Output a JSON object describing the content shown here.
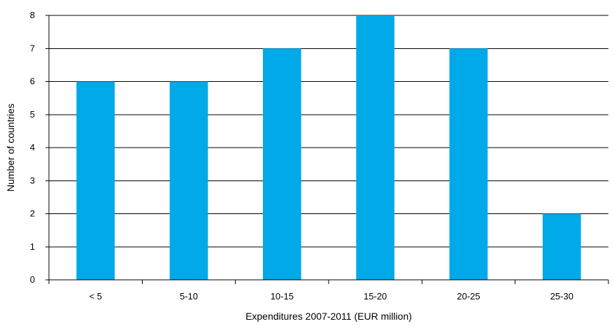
{
  "chart_data": {
    "type": "bar",
    "categories": [
      "< 5",
      "5-10",
      "10-15",
      "15-20",
      "20-25",
      "25-30"
    ],
    "values": [
      6,
      6,
      7,
      8,
      7,
      2
    ],
    "title": "",
    "xlabel": "Expenditures 2007-2011 (EUR million)",
    "ylabel": "Number of countries",
    "ylim": [
      0,
      8
    ],
    "yticks": [
      "0",
      "1",
      "2",
      "3",
      "4",
      "5",
      "6",
      "7",
      "8"
    ],
    "grid": true,
    "legend": "none",
    "bar_color": "#00A9E8"
  }
}
